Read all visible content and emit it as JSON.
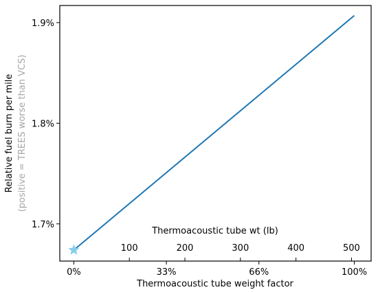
{
  "chart_data": {
    "type": "line",
    "xlabel": "Thermoacoustic tube weight factor",
    "ylabel": "Relative fuel burn per mile",
    "ylabel_secondary": "(positive = TREES worse than VCS)",
    "x_tick_labels": [
      "0%",
      "33%",
      "66%",
      "100%"
    ],
    "x_ticks": [
      0,
      33,
      66,
      100
    ],
    "xlim": [
      -5,
      106
    ],
    "y_tick_labels": [
      "1.7%",
      "1.8%",
      "1.9%"
    ],
    "y_ticks": [
      1.7,
      1.8,
      1.9
    ],
    "ylim": [
      1.663,
      1.917
    ],
    "secondary_axis": {
      "label": "Thermoacoustic tube wt (lb)",
      "tick_labels": [
        "100",
        "200",
        "300",
        "400",
        "500"
      ],
      "tick_positions_percent": [
        19.8,
        39.6,
        59.4,
        79.2,
        99
      ]
    },
    "series": [
      {
        "x": [
          0,
          100
        ],
        "y": [
          1.674,
          1.907
        ],
        "color": "#1f77b4"
      }
    ],
    "marker": {
      "shape": "star",
      "x": 0,
      "y": 1.674,
      "color": "#87ceeb"
    },
    "grid": false,
    "legend": "none"
  }
}
